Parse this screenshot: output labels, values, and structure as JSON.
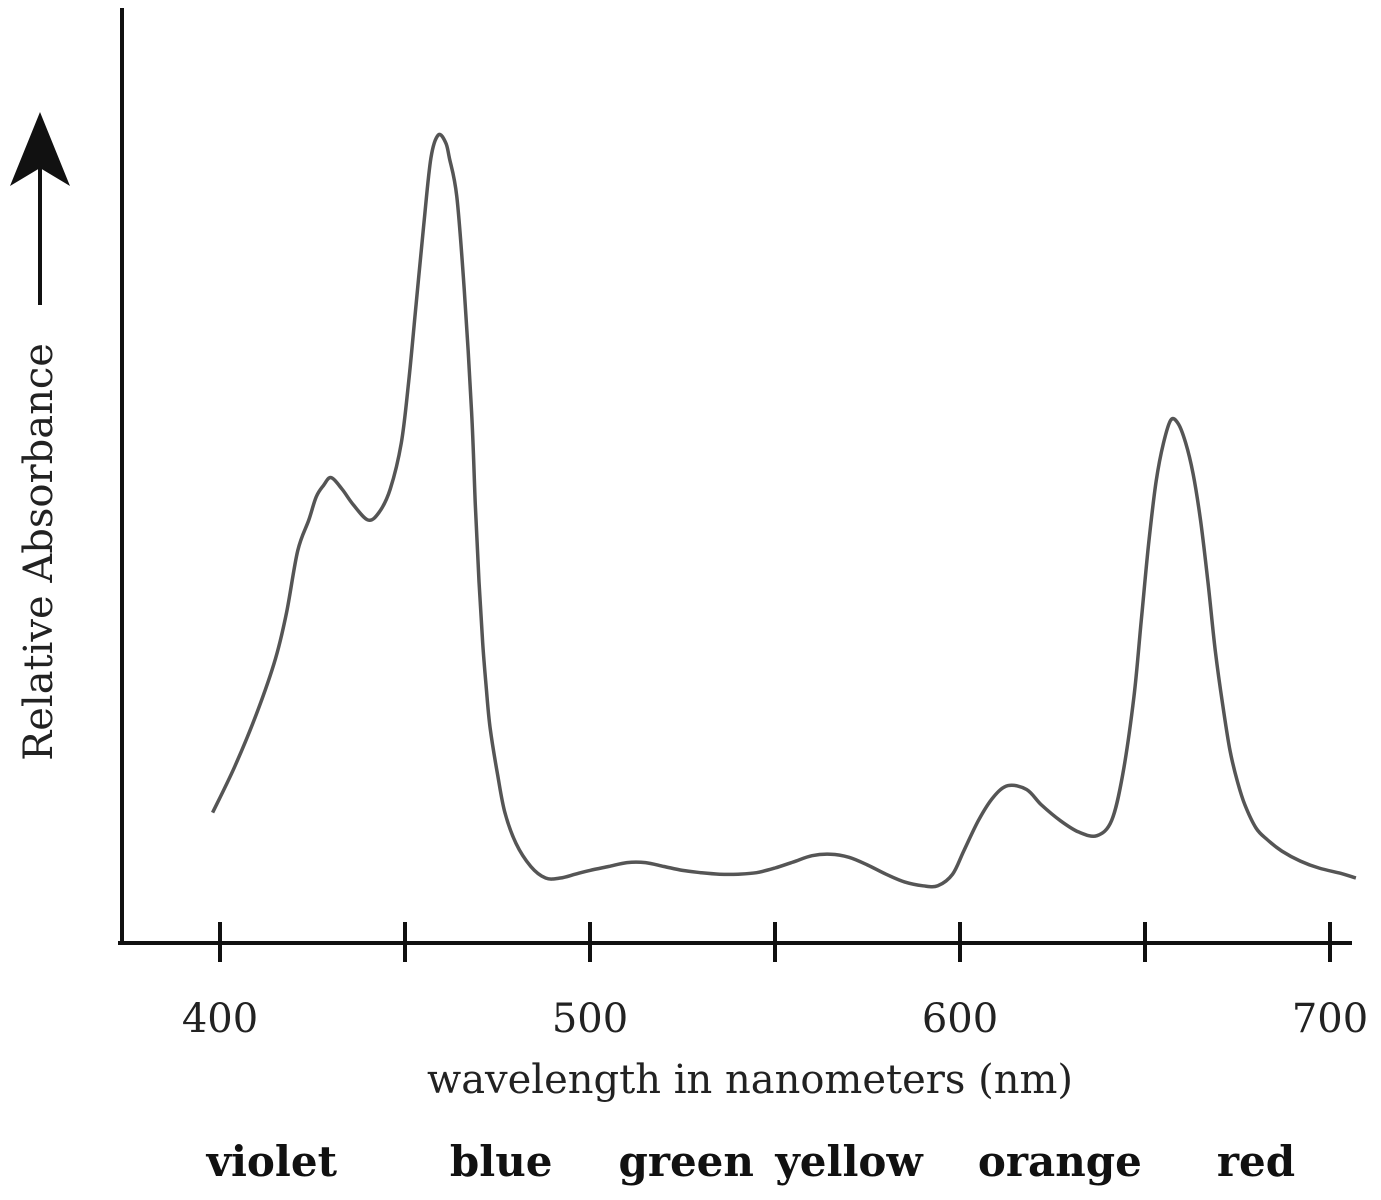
{
  "chart_data": {
    "type": "line",
    "xlabel": "wavelength in nanometers (nm)",
    "ylabel": "Relative Absorbance",
    "xlim": [
      400,
      700
    ],
    "ylim": [
      0,
      1
    ],
    "grid": false,
    "x_ticks": [
      {
        "value": 400,
        "label": "400"
      },
      {
        "value": 450,
        "label": ""
      },
      {
        "value": 500,
        "label": "500"
      },
      {
        "value": 550,
        "label": ""
      },
      {
        "value": 600,
        "label": "600"
      },
      {
        "value": 650,
        "label": ""
      },
      {
        "value": 700,
        "label": "700"
      }
    ],
    "color_bands": [
      {
        "label": "violet",
        "center": 414
      },
      {
        "label": "blue",
        "center": 476
      },
      {
        "label": "green",
        "center": 526
      },
      {
        "label": "yellow",
        "center": 570
      },
      {
        "label": "orange",
        "center": 627
      },
      {
        "label": "red",
        "center": 680
      }
    ],
    "series": [
      {
        "color": "#555555",
        "x": [
          398,
          404,
          410,
          415,
          418,
          421,
          424,
          426,
          428,
          430,
          433,
          436,
          440,
          443,
          446,
          449,
          451,
          453,
          455,
          457,
          459,
          461,
          462,
          464,
          466,
          468,
          469,
          470,
          471,
          472,
          473,
          475,
          477,
          480,
          484,
          488,
          492,
          496,
          500,
          505,
          510,
          515,
          520,
          525,
          530,
          535,
          540,
          545,
          550,
          555,
          560,
          565,
          570,
          575,
          580,
          585,
          590,
          594,
          598,
          601,
          605,
          609,
          613,
          618,
          622,
          627,
          632,
          637,
          641,
          644,
          647,
          649,
          651,
          653,
          655,
          657,
          659,
          661,
          663,
          665,
          667,
          669,
          671,
          673,
          675,
          677,
          680,
          683,
          687,
          692,
          697,
          703,
          707
        ],
        "y": [
          0.12,
          0.18,
          0.25,
          0.32,
          0.38,
          0.46,
          0.5,
          0.53,
          0.545,
          0.555,
          0.54,
          0.52,
          0.5,
          0.51,
          0.54,
          0.6,
          0.68,
          0.78,
          0.88,
          0.97,
          1.0,
          0.99,
          0.97,
          0.92,
          0.8,
          0.64,
          0.52,
          0.42,
          0.34,
          0.28,
          0.23,
          0.17,
          0.12,
          0.08,
          0.05,
          0.035,
          0.035,
          0.04,
          0.045,
          0.05,
          0.055,
          0.055,
          0.05,
          0.045,
          0.042,
          0.04,
          0.04,
          0.042,
          0.048,
          0.056,
          0.064,
          0.066,
          0.062,
          0.052,
          0.04,
          0.03,
          0.025,
          0.025,
          0.04,
          0.07,
          0.11,
          0.14,
          0.155,
          0.15,
          0.13,
          0.11,
          0.095,
          0.09,
          0.11,
          0.17,
          0.27,
          0.37,
          0.47,
          0.55,
          0.6,
          0.63,
          0.625,
          0.6,
          0.56,
          0.5,
          0.42,
          0.33,
          0.26,
          0.2,
          0.16,
          0.13,
          0.1,
          0.085,
          0.07,
          0.057,
          0.048,
          0.041,
          0.035
        ]
      }
    ]
  }
}
